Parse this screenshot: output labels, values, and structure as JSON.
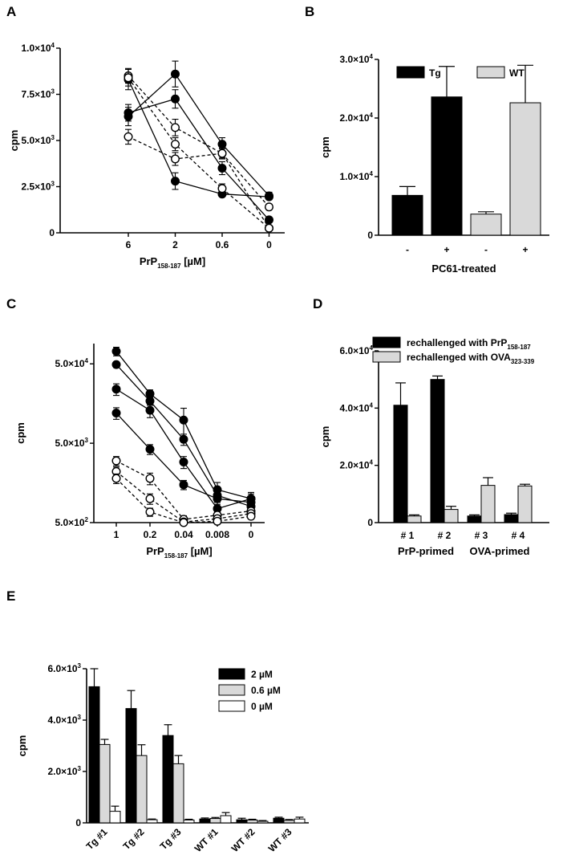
{
  "chart_data": [
    {
      "panel": "A",
      "type": "line",
      "xlabel_main": "PrP",
      "xlabel_sub": "158-187",
      "xlabel_unit": " [µM]",
      "ylabel": "cpm",
      "x_categories": [
        "6",
        "2",
        "0.6",
        "0"
      ],
      "ylim": [
        0,
        10000
      ],
      "y_ticks": [
        {
          "v": 0,
          "m": "0",
          "e": ""
        },
        {
          "v": 2500,
          "m": "2.5×10",
          "e": "3"
        },
        {
          "v": 5000,
          "m": "5.0×10",
          "e": "3"
        },
        {
          "v": 7500,
          "m": "7.5×10",
          "e": "3"
        },
        {
          "v": 10000,
          "m": "1.0×10",
          "e": "4"
        }
      ],
      "series": [
        {
          "marker": "filled",
          "style": "solid",
          "values": [
            6500,
            7250,
            3500,
            700
          ],
          "err": [
            450,
            500,
            350,
            150
          ]
        },
        {
          "marker": "filled",
          "style": "solid",
          "values": [
            6300,
            8600,
            4800,
            2000
          ],
          "err": [
            500,
            700,
            350,
            200
          ]
        },
        {
          "marker": "filled",
          "style": "solid",
          "values": [
            8300,
            2800,
            2100,
            1950
          ],
          "err": [
            550,
            450,
            150,
            150
          ]
        },
        {
          "marker": "open",
          "style": "dashed",
          "values": [
            8500,
            5700,
            4300,
            1400
          ],
          "err": [
            400,
            450,
            250,
            150
          ]
        },
        {
          "marker": "open",
          "style": "dashed",
          "values": [
            5200,
            4000,
            4300,
            250
          ],
          "err": [
            400,
            350,
            300,
            80
          ]
        },
        {
          "marker": "open",
          "style": "dashed",
          "values": [
            8400,
            4800,
            2400,
            250
          ],
          "err": [
            450,
            350,
            250,
            80
          ]
        }
      ]
    },
    {
      "panel": "B",
      "type": "bar",
      "xlabel": "PC61-treated",
      "ylabel": "cpm",
      "categories": [
        "-",
        "+",
        "-",
        "+"
      ],
      "values": [
        6800,
        23600,
        3600,
        22600
      ],
      "err": [
        1500,
        5200,
        400,
        6400
      ],
      "bar_colors": [
        "#000000",
        "#000000",
        "#d9d9d9",
        "#d9d9d9"
      ],
      "ylim": [
        0,
        30000
      ],
      "y_ticks": [
        {
          "v": 0,
          "m": "0",
          "e": ""
        },
        {
          "v": 10000,
          "m": "1.0×10",
          "e": "4"
        },
        {
          "v": 20000,
          "m": "2.0×10",
          "e": "4"
        },
        {
          "v": 30000,
          "m": "3.0×10",
          "e": "4"
        }
      ],
      "legend": [
        {
          "label": "Tg",
          "color": "#000000"
        },
        {
          "label": "WT",
          "color": "#d9d9d9"
        }
      ]
    },
    {
      "panel": "C",
      "type": "line",
      "scale": "log",
      "xlabel_main": "PrP",
      "xlabel_sub": "158-187",
      "xlabel_unit": " [µM]",
      "ylabel": "cpm",
      "x_categories": [
        "1",
        "0.2",
        "0.04",
        "0.008",
        "0"
      ],
      "ylim": [
        500,
        90000
      ],
      "y_ticks": [
        {
          "v": 500,
          "m": "5.0×10",
          "e": "2"
        },
        {
          "v": 5000,
          "m": "5.0×10",
          "e": "3"
        },
        {
          "v": 50000,
          "m": "5.0×10",
          "e": "4"
        }
      ],
      "series": [
        {
          "marker": "filled",
          "style": "solid",
          "values": [
            72000,
            21000,
            9800,
            1300,
            1000
          ],
          "err": [
            9000,
            2500,
            4000,
            300,
            200
          ]
        },
        {
          "marker": "filled",
          "style": "solid",
          "values": [
            49000,
            17000,
            5600,
            1100,
            800
          ],
          "err": [
            4000,
            2000,
            900,
            200,
            150
          ]
        },
        {
          "marker": "filled",
          "style": "solid",
          "values": [
            24000,
            13000,
            2900,
            750,
            1000
          ],
          "err": [
            4000,
            2500,
            500,
            150,
            150
          ]
        },
        {
          "marker": "filled",
          "style": "solid",
          "values": [
            12000,
            4200,
            1500,
            1000,
            900
          ],
          "err": [
            2000,
            600,
            200,
            150,
            150
          ]
        },
        {
          "marker": "open",
          "style": "dashed",
          "values": [
            3000,
            1800,
            550,
            620,
            700
          ],
          "err": [
            400,
            300,
            60,
            60,
            60
          ]
        },
        {
          "marker": "open",
          "style": "dashed",
          "values": [
            2200,
            1000,
            510,
            560,
            650
          ],
          "err": [
            300,
            150,
            40,
            50,
            50
          ]
        },
        {
          "marker": "open",
          "style": "dashed",
          "values": [
            1800,
            680,
            500,
            520,
            600
          ],
          "err": [
            250,
            80,
            30,
            40,
            40
          ]
        }
      ]
    },
    {
      "panel": "D",
      "type": "bar",
      "ylabel": "cpm",
      "categories": [
        "# 1",
        "# 2",
        "# 3",
        "# 4"
      ],
      "groups": [
        {
          "label": "PrP-primed",
          "from": 0,
          "to": 1
        },
        {
          "label": "OVA-primed",
          "from": 2,
          "to": 3
        }
      ],
      "ylim": [
        0,
        60000
      ],
      "y_ticks": [
        {
          "v": 0,
          "m": "0",
          "e": ""
        },
        {
          "v": 20000,
          "m": "2.0×10",
          "e": "4"
        },
        {
          "v": 40000,
          "m": "4.0×10",
          "e": "4"
        },
        {
          "v": 60000,
          "m": "6.0×10",
          "e": "4"
        }
      ],
      "series": [
        {
          "name_main": "rechallenged with PrP",
          "name_sub": "158-187",
          "color": "#000000",
          "values": [
            41000,
            50000,
            2300,
            2800
          ],
          "err": [
            7800,
            1200,
            400,
            500
          ]
        },
        {
          "name_main": "rechallenged with OVA",
          "name_sub": "323-339",
          "color": "#d9d9d9",
          "values": [
            2300,
            4600,
            13000,
            12800
          ],
          "err": [
            400,
            1100,
            2700,
            600
          ]
        }
      ]
    },
    {
      "panel": "E",
      "type": "bar",
      "ylabel": "cpm",
      "categories": [
        "Tg  #1",
        "Tg  #2",
        "Tg  #3",
        "WT  #1",
        "WT  #2",
        "WT  #3"
      ],
      "ylim": [
        0,
        6000
      ],
      "y_ticks": [
        {
          "v": 0,
          "m": "0",
          "e": ""
        },
        {
          "v": 2000,
          "m": "2.0×10",
          "e": "3"
        },
        {
          "v": 4000,
          "m": "4.0×10",
          "e": "3"
        },
        {
          "v": 6000,
          "m": "6.0×10",
          "e": "3"
        }
      ],
      "series": [
        {
          "name": "2 µM",
          "color": "#000000",
          "values": [
            5300,
            4450,
            3400,
            150,
            120,
            180
          ],
          "err": [
            700,
            700,
            420,
            40,
            60,
            40
          ]
        },
        {
          "name": "0.6 µM",
          "color": "#d9d9d9",
          "values": [
            3050,
            2620,
            2300,
            170,
            110,
            100
          ],
          "err": [
            200,
            420,
            320,
            40,
            30,
            30
          ]
        },
        {
          "name": "0 µM",
          "color": "#ffffff",
          "values": [
            450,
            120,
            110,
            280,
            60,
            150
          ],
          "err": [
            200,
            30,
            30,
            120,
            30,
            70
          ]
        }
      ]
    }
  ]
}
